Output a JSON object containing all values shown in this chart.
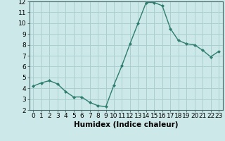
{
  "x": [
    0,
    1,
    2,
    3,
    4,
    5,
    6,
    7,
    8,
    9,
    10,
    11,
    12,
    13,
    14,
    15,
    16,
    17,
    18,
    19,
    20,
    21,
    22,
    23
  ],
  "y": [
    4.2,
    4.5,
    4.7,
    4.4,
    3.7,
    3.2,
    3.2,
    2.7,
    2.4,
    2.3,
    4.3,
    6.1,
    8.1,
    10.0,
    11.9,
    11.9,
    11.6,
    9.5,
    8.4,
    8.1,
    8.0,
    7.5,
    6.9,
    7.4
  ],
  "line_color": "#2e7d6e",
  "marker": "D",
  "marker_size": 2.0,
  "bg_color": "#cce8e8",
  "grid_color": "#aacece",
  "xlabel": "Humidex (Indice chaleur)",
  "xlabel_fontsize": 7.5,
  "ylim": [
    2,
    12
  ],
  "xlim": [
    -0.5,
    23.5
  ],
  "yticks": [
    2,
    3,
    4,
    5,
    6,
    7,
    8,
    9,
    10,
    11,
    12
  ],
  "xticks": [
    0,
    1,
    2,
    3,
    4,
    5,
    6,
    7,
    8,
    9,
    10,
    11,
    12,
    13,
    14,
    15,
    16,
    17,
    18,
    19,
    20,
    21,
    22,
    23
  ],
  "tick_fontsize": 6.5
}
